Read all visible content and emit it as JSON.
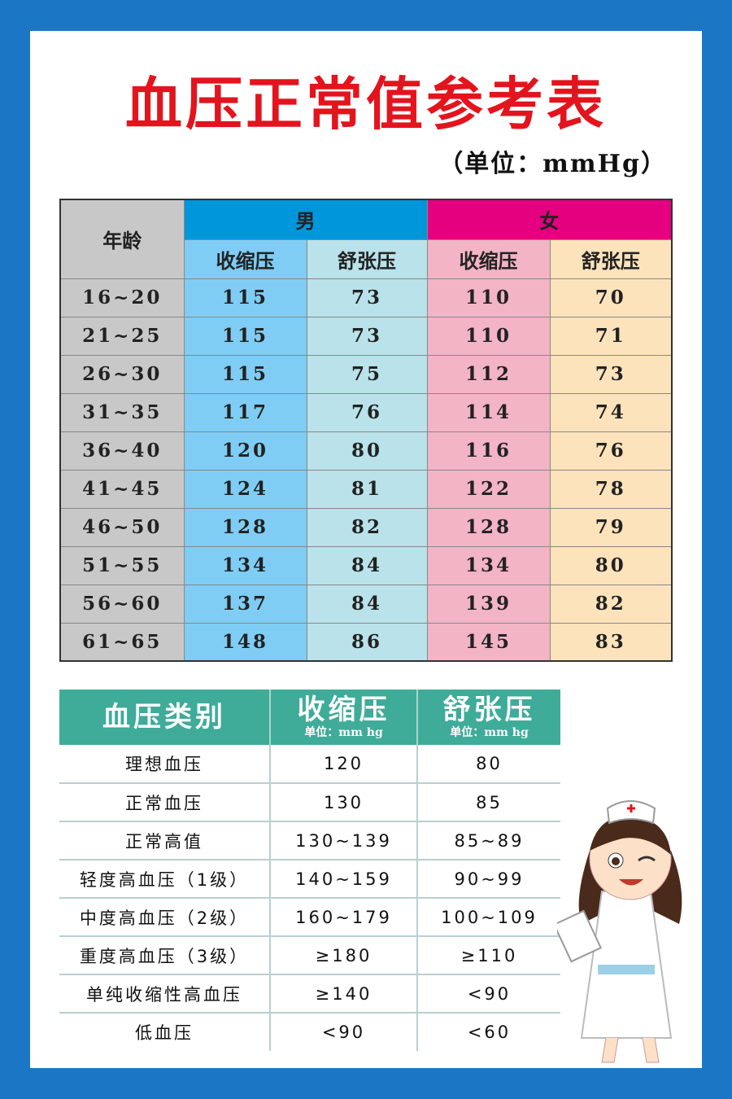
{
  "title": "血压正常值参考表",
  "unit": "（单位：mmHg）",
  "table1": {
    "age_header": "年龄",
    "male": "男",
    "female": "女",
    "systolic": "收缩压",
    "diastolic": "舒张压",
    "rows": [
      {
        "age": "16~20",
        "ms": "115",
        "md": "73",
        "fs": "110",
        "fd": "70"
      },
      {
        "age": "21~25",
        "ms": "115",
        "md": "73",
        "fs": "110",
        "fd": "71"
      },
      {
        "age": "26~30",
        "ms": "115",
        "md": "75",
        "fs": "112",
        "fd": "73"
      },
      {
        "age": "31~35",
        "ms": "117",
        "md": "76",
        "fs": "114",
        "fd": "74"
      },
      {
        "age": "36~40",
        "ms": "120",
        "md": "80",
        "fs": "116",
        "fd": "76"
      },
      {
        "age": "41~45",
        "ms": "124",
        "md": "81",
        "fs": "122",
        "fd": "78"
      },
      {
        "age": "46~50",
        "ms": "128",
        "md": "82",
        "fs": "128",
        "fd": "79"
      },
      {
        "age": "51~55",
        "ms": "134",
        "md": "84",
        "fs": "134",
        "fd": "80"
      },
      {
        "age": "56~60",
        "ms": "137",
        "md": "84",
        "fs": "139",
        "fd": "82"
      },
      {
        "age": "61~65",
        "ms": "148",
        "md": "86",
        "fs": "145",
        "fd": "83"
      }
    ],
    "colors": {
      "male": "#0096dc",
      "female": "#e4007f",
      "male_sys": "#7fcdf4",
      "male_dia": "#b9e2ea",
      "female_sys": "#f3b4c5",
      "female_dia": "#fde3bb",
      "age": "#c9c8c8"
    }
  },
  "table2": {
    "header": {
      "category": "血压类别",
      "systolic": "收缩压",
      "diastolic": "舒张压",
      "unit": "单位：mm hg"
    },
    "rows": [
      {
        "cat": "理想血压",
        "sys": "120",
        "dia": "80"
      },
      {
        "cat": "正常血压",
        "sys": "130",
        "dia": "85"
      },
      {
        "cat": "正常高值",
        "sys": "130~139",
        "dia": "85~89"
      },
      {
        "cat": "轻度高血压（1级）",
        "sys": "140~159",
        "dia": "90~99"
      },
      {
        "cat": "中度高血压（2级）",
        "sys": "160~179",
        "dia": "100~109"
      },
      {
        "cat": "重度高血压（3级）",
        "sys": "≥180",
        "dia": "≥110"
      },
      {
        "cat": "单纯收缩性高血压",
        "sys": "≥140",
        "dia": "<90"
      },
      {
        "cat": "低血压",
        "sys": "<90",
        "dia": "<60"
      }
    ],
    "header_color": "#3fab99"
  },
  "illustration": "nurse"
}
